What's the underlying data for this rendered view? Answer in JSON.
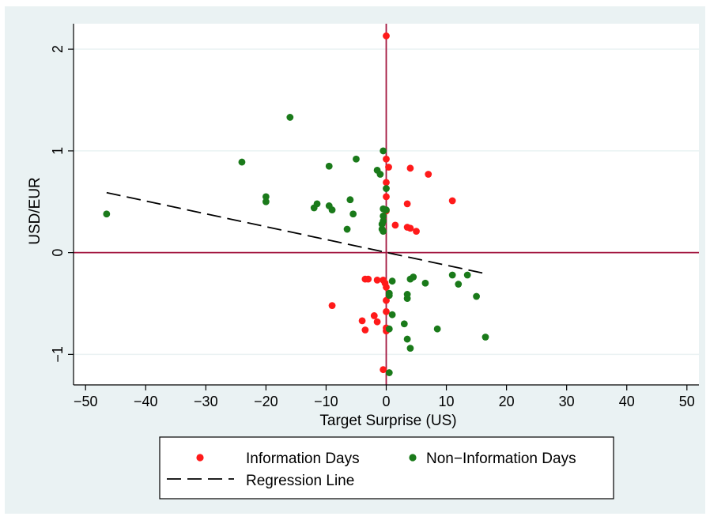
{
  "chart_data": {
    "type": "scatter",
    "title": "",
    "xlabel": "Target Surprise (US)",
    "ylabel": "USD/EUR",
    "xlim": [
      -52,
      52
    ],
    "ylim": [
      -1.3,
      2.25
    ],
    "x_ticks": [
      -50,
      -40,
      -30,
      -20,
      -10,
      0,
      10,
      20,
      30,
      40,
      50
    ],
    "x_tick_labels": [
      "−50",
      "−40",
      "−30",
      "−20",
      "−10",
      "0",
      "10",
      "20",
      "30",
      "40",
      "50"
    ],
    "y_ticks": [
      -1,
      0,
      1,
      2
    ],
    "y_tick_labels": [
      "−1",
      "0",
      "1",
      "2"
    ],
    "grid": true,
    "legend_position": "bottom",
    "reference_lines": [
      {
        "axis": "x",
        "value": 0,
        "color": "#a3163f"
      },
      {
        "axis": "y",
        "value": 0,
        "color": "#a3163f"
      }
    ],
    "series": [
      {
        "name": "Information Days",
        "color": "#ff1a1a",
        "points": [
          [
            0,
            2.13
          ],
          [
            0,
            0.92
          ],
          [
            0.4,
            0.84
          ],
          [
            4,
            0.83
          ],
          [
            7,
            0.77
          ],
          [
            0,
            0.69
          ],
          [
            0,
            0.55
          ],
          [
            11,
            0.51
          ],
          [
            3.5,
            0.48
          ],
          [
            0,
            0.41
          ],
          [
            1.5,
            0.27
          ],
          [
            3.5,
            0.25
          ],
          [
            4,
            0.24
          ],
          [
            5,
            0.21
          ],
          [
            -3.5,
            -0.26
          ],
          [
            -3,
            -0.26
          ],
          [
            -1.5,
            -0.27
          ],
          [
            -0.5,
            -0.27
          ],
          [
            -0.2,
            -0.3
          ],
          [
            0,
            -0.34
          ],
          [
            0,
            -0.47
          ],
          [
            -9,
            -0.52
          ],
          [
            0,
            -0.58
          ],
          [
            -2,
            -0.62
          ],
          [
            -4,
            -0.67
          ],
          [
            -1.5,
            -0.68
          ],
          [
            0,
            -0.74
          ],
          [
            -3.5,
            -0.76
          ],
          [
            0,
            -0.77
          ],
          [
            -0.5,
            -1.15
          ]
        ]
      },
      {
        "name": "Non−Information Days",
        "color": "#1a7a1a",
        "points": [
          [
            -16,
            1.33
          ],
          [
            -0.5,
            1.0
          ],
          [
            -24,
            0.89
          ],
          [
            -5,
            0.92
          ],
          [
            -9.5,
            0.85
          ],
          [
            -1.5,
            0.81
          ],
          [
            -1,
            0.77
          ],
          [
            0,
            0.63
          ],
          [
            -20,
            0.55
          ],
          [
            -6,
            0.52
          ],
          [
            -20,
            0.5
          ],
          [
            -11.5,
            0.48
          ],
          [
            -12,
            0.44
          ],
          [
            -9.5,
            0.46
          ],
          [
            -9,
            0.42
          ],
          [
            -0.5,
            0.43
          ],
          [
            0,
            0.42
          ],
          [
            -0.5,
            0.36
          ],
          [
            -5.5,
            0.38
          ],
          [
            -46.5,
            0.38
          ],
          [
            -0.5,
            0.31
          ],
          [
            -0.7,
            0.28
          ],
          [
            -6.5,
            0.23
          ],
          [
            -0.5,
            0.21
          ],
          [
            -0.7,
            0.23
          ],
          [
            13.5,
            -0.22
          ],
          [
            11,
            -0.22
          ],
          [
            4.5,
            -0.24
          ],
          [
            4,
            -0.26
          ],
          [
            1,
            -0.28
          ],
          [
            6.5,
            -0.3
          ],
          [
            12,
            -0.31
          ],
          [
            0.5,
            -0.4
          ],
          [
            3.5,
            -0.41
          ],
          [
            15,
            -0.43
          ],
          [
            3.5,
            -0.45
          ],
          [
            0.5,
            -0.42
          ],
          [
            1,
            -0.61
          ],
          [
            3,
            -0.7
          ],
          [
            8.5,
            -0.75
          ],
          [
            0.5,
            -0.75
          ],
          [
            3.5,
            -0.85
          ],
          [
            16.5,
            -0.83
          ],
          [
            4,
            -0.94
          ],
          [
            0.5,
            -1.18
          ]
        ]
      }
    ],
    "regression_line": {
      "name": "Regression Line",
      "color": "#000000",
      "dash": true,
      "x": [
        -46.5,
        16
      ],
      "y": [
        0.59,
        -0.2
      ]
    }
  }
}
